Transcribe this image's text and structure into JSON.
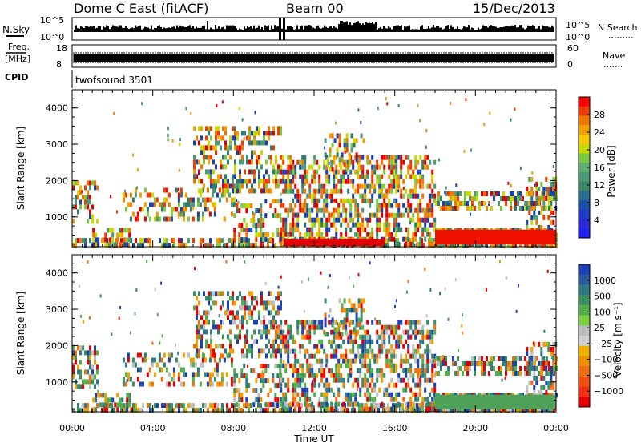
{
  "header": {
    "station": "Dome C East (fitACF)",
    "beam": "Beam 00",
    "date": "15/Dec/2013"
  },
  "strips": {
    "nsky_label": "N.Sky",
    "nsky_ticks": [
      "10^5",
      "10^0"
    ],
    "nsky_right_ticks": [
      "10^5",
      "10^0"
    ],
    "nsearch_label": "N.Search",
    "freq_label_line1": "Freq.",
    "freq_label_line2": "[MHz]",
    "freq_ticks": [
      "18",
      "8"
    ],
    "nave_ticks": [
      "60",
      "0"
    ],
    "nave_label": "Nave",
    "cpid_label": "CPID",
    "cpid_value": "twofsound 3501"
  },
  "chart_data": [
    {
      "type": "heatmap",
      "title": "Power",
      "ylabel": "Slant Range [km]",
      "y_ticks": [
        "1000",
        "2000",
        "3000",
        "4000"
      ],
      "ylim": [
        180,
        4500
      ],
      "colorbar_label": "Power [dB]",
      "colorbar_ticks": [
        "28",
        "24",
        "20",
        "16",
        "12",
        "8",
        "4"
      ],
      "colorbar_colors": [
        "#ff0000",
        "#f03a00",
        "#f07800",
        "#f0a000",
        "#f8c800",
        "#c8d800",
        "#7ac840",
        "#5fb070",
        "#4a9a78",
        "#3c8868",
        "#2a6e90",
        "#1c4fa8",
        "#1d3cc8",
        "#2a2ad8",
        "#2020f0"
      ]
    },
    {
      "type": "heatmap",
      "title": "Velocity",
      "ylabel": "Slant Range [km]",
      "y_ticks": [
        "1000",
        "2000",
        "3000",
        "4000"
      ],
      "ylim": [
        180,
        4500
      ],
      "xlabel": "Time UT",
      "x_ticks": [
        "00:00",
        "04:00",
        "08:00",
        "12:00",
        "16:00",
        "20:00",
        "00:00"
      ],
      "colorbar_label": "Velocity [m s⁻¹]",
      "colorbar_ticks": [
        "1000",
        "500",
        "100",
        "25",
        "−25",
        "−100",
        "−500",
        "−1000"
      ],
      "colorbar_colors": [
        "#1d40b8",
        "#2a5a9c",
        "#2f7a80",
        "#3a9060",
        "#52b04a",
        "#7cd040",
        "#bcbcbc",
        "#cfcfcf",
        "#f0b000",
        "#f09000",
        "#f07010",
        "#f05010",
        "#f03010",
        "#e80000"
      ]
    }
  ],
  "palette": {
    "power": [
      "#1a3fb0",
      "#2f7a6a",
      "#4a9a78",
      "#7ac840",
      "#c8d800",
      "#f0a000",
      "#f07800",
      "#f03a00",
      "#e00000"
    ],
    "velocity": [
      "#1d40b8",
      "#2f7a80",
      "#3a9060",
      "#52b04a",
      "#bfbfbf",
      "#f0a000",
      "#f07010",
      "#e80000"
    ]
  }
}
